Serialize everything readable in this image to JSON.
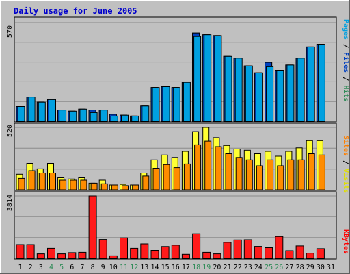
{
  "chart_data": {
    "type": "bar",
    "title": "Daily usage for June 2005",
    "days": [
      "1",
      "2",
      "3",
      "4",
      "5",
      "6",
      "7",
      "8",
      "9",
      "10",
      "11",
      "12",
      "13",
      "14",
      "15",
      "16",
      "17",
      "18",
      "19",
      "20",
      "21",
      "22",
      "23",
      "24",
      "25",
      "26",
      "27",
      "28",
      "29",
      "30",
      "31"
    ],
    "weekend_days": [
      "4",
      "5",
      "11",
      "12",
      "18",
      "19",
      "25",
      "26"
    ],
    "panels": [
      {
        "id": "top",
        "ymax": 570,
        "ymax_label": "570",
        "side_label": [
          "Pages",
          " / ",
          "Files",
          " / ",
          "Hits"
        ],
        "side_colors": [
          "#00a0e0",
          "#000000",
          "#0040c0",
          "#000000",
          "#2e8b57"
        ],
        "series": [
          {
            "name": "Hits",
            "color": "#2e8b57",
            "values": [
              85,
              140,
              110,
              125,
              65,
              58,
              70,
              65,
              65,
              40,
              35,
              30,
              88,
              195,
              200,
              195,
              225,
              510,
              500,
              495,
              375,
              365,
              320,
              280,
              340,
              295,
              325,
              365,
              430,
              445,
              null
            ]
          },
          {
            "name": "Files",
            "color": "#0040c0",
            "values": [
              85,
              140,
              110,
              125,
              65,
              58,
              70,
              65,
              65,
              40,
              35,
              30,
              88,
              195,
              200,
              195,
              225,
              510,
              500,
              495,
              375,
              365,
              320,
              280,
              340,
              295,
              325,
              365,
              430,
              445,
              null
            ]
          },
          {
            "name": "Pages",
            "color": "#00a0e0",
            "values": [
              85,
              140,
              110,
              125,
              65,
              58,
              70,
              50,
              65,
              30,
              35,
              30,
              88,
              195,
              200,
              195,
              225,
              490,
              500,
              495,
              375,
              365,
              320,
              280,
              315,
              295,
              325,
              365,
              430,
              445,
              null
            ]
          }
        ]
      },
      {
        "id": "mid",
        "ymax": 520,
        "ymax_label": "520",
        "side_label": [
          "Sites",
          " / ",
          "Visits"
        ],
        "side_colors": [
          "#ff8000",
          "#000000",
          "#e0e000"
        ],
        "series": [
          {
            "name": "Visits",
            "color": "#ffff33",
            "values": [
              130,
              220,
              175,
              220,
              100,
              90,
              100,
              55,
              80,
              40,
              45,
              40,
              140,
              250,
              290,
              270,
              320,
              485,
              520,
              435,
              370,
              340,
              330,
              300,
              320,
              280,
              320,
              350,
              410,
              410,
              null
            ]
          },
          {
            "name": "Sites",
            "color": "#ff8c00",
            "values": [
              95,
              160,
              140,
              140,
              80,
              80,
              80,
              55,
              50,
              40,
              35,
              40,
              115,
              180,
              210,
              185,
              215,
              375,
              405,
              360,
              300,
              270,
              250,
              200,
              250,
              200,
              250,
              250,
              300,
              290,
              null
            ]
          }
        ]
      },
      {
        "id": "bottom",
        "ymax": 3814,
        "ymax_label": "3814",
        "side_label": [
          "KBytes"
        ],
        "side_colors": [
          "#ff0000"
        ],
        "series": [
          {
            "name": "KBytes",
            "color": "#ff1a1a",
            "values": [
              840,
              840,
              270,
              610,
              270,
              340,
              360,
              3814,
              1150,
              150,
              1250,
              610,
              880,
              480,
              720,
              800,
              240,
              1500,
              360,
              270,
              970,
              1120,
              1130,
              730,
              650,
              1330,
              460,
              760,
              310,
              590,
              null
            ]
          }
        ]
      }
    ]
  }
}
